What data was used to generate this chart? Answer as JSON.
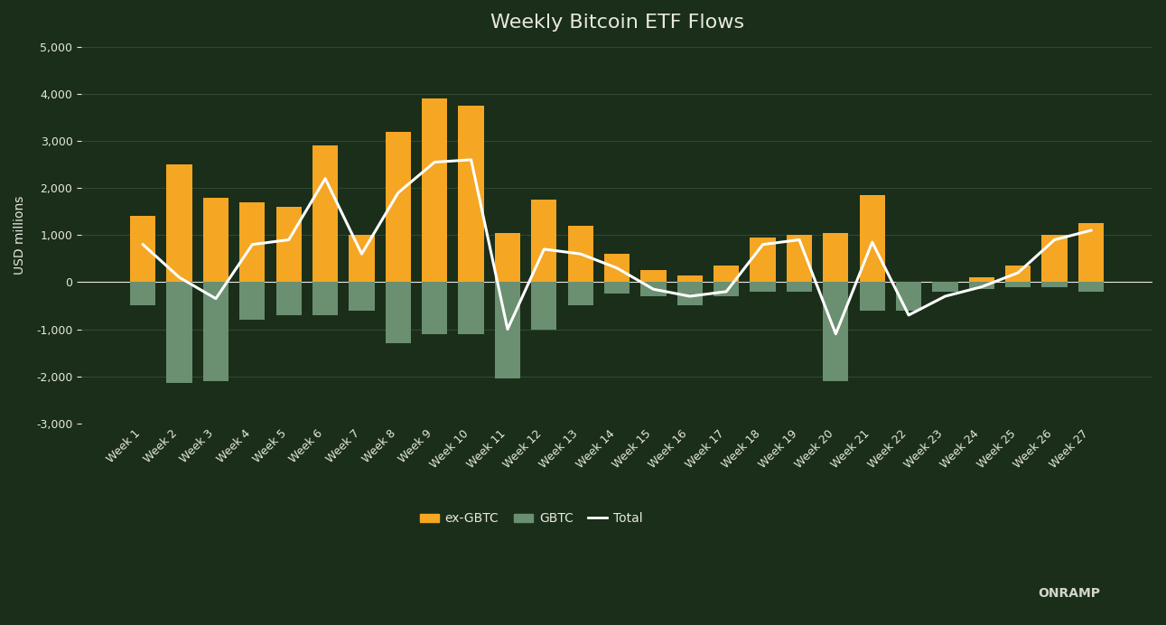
{
  "title": "Weekly Bitcoin ETF Flows",
  "ylabel": "USD millions",
  "background_color": "#1a2e1a",
  "bar_color_exgbtc": "#f5a623",
  "bar_color_gbtc": "#6b8f71",
  "line_color": "#ffffff",
  "grid_color": "#2e4a2e",
  "text_color": "#e8e8e0",
  "weeks": [
    "Week 1",
    "Week 2",
    "Week 3",
    "Week 4",
    "Week 5",
    "Week 6",
    "Week 7",
    "Week 8",
    "Week 9",
    "Week 10",
    "Week 11",
    "Week 12",
    "Week 13",
    "Week 14",
    "Week 15",
    "Week 16",
    "Week 17",
    "Week 18",
    "Week 19",
    "Week 20",
    "Week 21",
    "Week 22",
    "Week 23",
    "Week 24",
    "Week 25",
    "Week 26",
    "Week 27"
  ],
  "ex_gbtc": [
    1400,
    2500,
    1800,
    1700,
    1600,
    2900,
    1000,
    3200,
    3900,
    3750,
    1050,
    1750,
    1200,
    600,
    250,
    150,
    350,
    950,
    1000,
    1050,
    1850,
    -200,
    -100,
    100,
    350,
    1000,
    1250
  ],
  "gbtc": [
    -500,
    -2150,
    -2100,
    -800,
    -700,
    -700,
    -600,
    -1300,
    -1100,
    -1100,
    -2050,
    -1000,
    -500,
    -250,
    -300,
    -500,
    -300,
    -200,
    -200,
    -2100,
    -600,
    -600,
    -200,
    -150,
    -100,
    -100,
    -200
  ],
  "total": [
    800,
    100,
    -350,
    800,
    900,
    2200,
    600,
    1900,
    2550,
    2600,
    -1000,
    700,
    600,
    300,
    -150,
    -300,
    -200,
    800,
    900,
    -1100,
    850,
    -700,
    -300,
    -100,
    200,
    900,
    1100
  ],
  "ylim": [
    -3000,
    5000
  ],
  "yticks": [
    -3000,
    -2000,
    -1000,
    0,
    1000,
    2000,
    3000,
    4000,
    5000
  ]
}
